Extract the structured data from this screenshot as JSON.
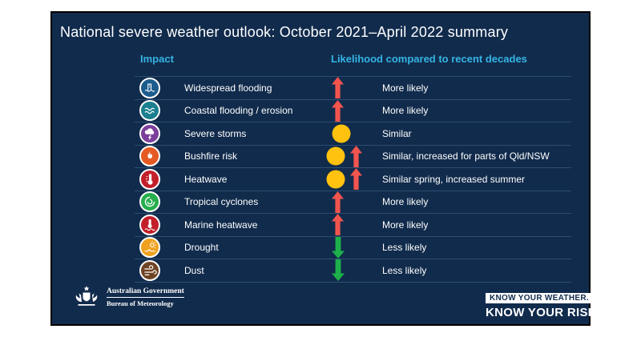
{
  "title": "National severe weather outlook: October 2021–April 2022 summary",
  "columns": {
    "impact": "Impact",
    "likelihood": "Likelihood compared to recent decades"
  },
  "colors": {
    "panel_background": "#112b4c",
    "header_accent": "#35b4e5",
    "divider": "#2c4e72",
    "arrow_up": "#f2544e",
    "arrow_down": "#1db04b",
    "similar_circle": "#ffc20e"
  },
  "chart_data": {
    "type": "table",
    "title": "National severe weather outlook: October 2021–April 2022 summary",
    "columns": [
      "Impact",
      "Likelihood compared to recent decades"
    ],
    "rows": [
      {
        "impact": "Widespread flooding",
        "symbols": [
          "up-arrow"
        ],
        "likelihood": "More likely"
      },
      {
        "impact": "Coastal flooding / erosion",
        "symbols": [
          "up-arrow"
        ],
        "likelihood": "More likely"
      },
      {
        "impact": "Severe storms",
        "symbols": [
          "similar-circle"
        ],
        "likelihood": "Similar"
      },
      {
        "impact": "Bushfire risk",
        "symbols": [
          "similar-circle",
          "up-arrow"
        ],
        "likelihood": "Similar, increased for parts of Qld/NSW"
      },
      {
        "impact": "Heatwave",
        "symbols": [
          "similar-circle",
          "up-arrow"
        ],
        "likelihood": "Similar spring, increased summer"
      },
      {
        "impact": "Tropical cyclones",
        "symbols": [
          "up-arrow"
        ],
        "likelihood": "More likely"
      },
      {
        "impact": "Marine heatwave",
        "symbols": [
          "up-arrow"
        ],
        "likelihood": "More likely"
      },
      {
        "impact": "Drought",
        "symbols": [
          "down-arrow"
        ],
        "likelihood": "Less likely"
      },
      {
        "impact": "Dust",
        "symbols": [
          "down-arrow"
        ],
        "likelihood": "Less likely"
      }
    ]
  },
  "rows": [
    {
      "id": "widespread-flooding",
      "impact": "Widespread flooding",
      "icon_color": "#1c5c8d",
      "symbols": [
        "up"
      ],
      "likelihood": "More likely"
    },
    {
      "id": "coastal-flooding-erosion",
      "impact": "Coastal flooding / erosion",
      "icon_color": "#1b7f8e",
      "symbols": [
        "up"
      ],
      "likelihood": "More likely"
    },
    {
      "id": "severe-storms",
      "impact": "Severe storms",
      "icon_color": "#7b3f9b",
      "symbols": [
        "similar"
      ],
      "likelihood": "Similar"
    },
    {
      "id": "bushfire-risk",
      "impact": "Bushfire risk",
      "icon_color": "#e55a22",
      "symbols": [
        "similar",
        "up"
      ],
      "likelihood": "Similar, increased for parts of Qld/NSW"
    },
    {
      "id": "heatwave",
      "impact": "Heatwave",
      "icon_color": "#c21f2a",
      "symbols": [
        "similar",
        "up"
      ],
      "likelihood": "Similar spring, increased summer"
    },
    {
      "id": "tropical-cyclones",
      "impact": "Tropical cyclones",
      "icon_color": "#27ae4e",
      "symbols": [
        "up"
      ],
      "likelihood": "More likely"
    },
    {
      "id": "marine-heatwave",
      "impact": "Marine heatwave",
      "icon_color": "#c21f2a",
      "symbols": [
        "up"
      ],
      "likelihood": "More likely"
    },
    {
      "id": "drought",
      "impact": "Drought",
      "icon_color": "#efa11f",
      "symbols": [
        "down"
      ],
      "likelihood": "Less likely"
    },
    {
      "id": "dust",
      "impact": "Dust",
      "icon_color": "#6e4323",
      "symbols": [
        "down"
      ],
      "likelihood": "Less likely"
    }
  ],
  "footer": {
    "gov_line1": "Australian Government",
    "gov_line2": "Bureau of Meteorology",
    "brand_line1": "KNOW YOUR WEATHER.",
    "brand_line2": "KNOW YOUR RISK."
  }
}
